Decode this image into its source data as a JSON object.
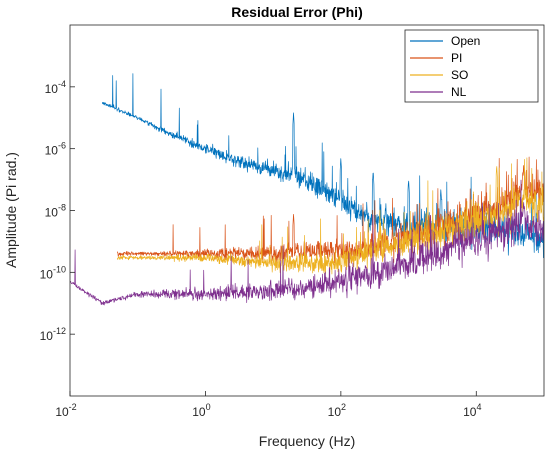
{
  "chart_data": {
    "type": "line",
    "title": "Residual Error (Phi)",
    "xlabel": "Frequency (Hz)",
    "ylabel": "Amplitude (Pi rad.)",
    "x_scale": "log",
    "y_scale": "log",
    "xlim": [
      0.01,
      100000
    ],
    "ylim": [
      1e-14,
      0.01
    ],
    "x_ticks": [
      {
        "value": 0.01,
        "base": "10",
        "exp": "-2"
      },
      {
        "value": 1,
        "base": "10",
        "exp": "0"
      },
      {
        "value": 100,
        "base": "10",
        "exp": "2"
      },
      {
        "value": 10000,
        "base": "10",
        "exp": "4"
      }
    ],
    "y_ticks": [
      {
        "value": 1e-12,
        "base": "10",
        "exp": "-12"
      },
      {
        "value": 1e-10,
        "base": "10",
        "exp": "-10"
      },
      {
        "value": 1e-08,
        "base": "10",
        "exp": "-8"
      },
      {
        "value": 1e-06,
        "base": "10",
        "exp": "-6"
      },
      {
        "value": 0.0001,
        "base": "10",
        "exp": "-4"
      }
    ],
    "grid": false,
    "legend_position": "top-right",
    "series": [
      {
        "name": "Open",
        "color": "#0072BD",
        "x_range": [
          0.03,
          100000
        ],
        "points": [
          [
            0.03,
            3e-05
          ],
          [
            0.1,
            1e-05
          ],
          [
            0.3,
            3e-06
          ],
          [
            1,
            1e-06
          ],
          [
            3,
            4e-07
          ],
          [
            10,
            2e-07
          ],
          [
            20,
            1.5e-07
          ],
          [
            30,
            1e-07
          ],
          [
            100,
            2e-08
          ],
          [
            300,
            5e-09
          ],
          [
            1000,
            3e-09
          ],
          [
            10000,
            3e-09
          ],
          [
            50000,
            2e-09
          ],
          [
            100000,
            1e-09
          ]
        ],
        "peaks": [
          [
            20,
            1.5e-05
          ],
          [
            100,
            5e-07
          ],
          [
            300,
            2e-07
          ],
          [
            1000,
            1e-07
          ],
          [
            3000,
            5e-08
          ]
        ]
      },
      {
        "name": "PI",
        "color": "#D95319",
        "x_range": [
          0.05,
          100000
        ],
        "points": [
          [
            0.05,
            4e-10
          ],
          [
            0.3,
            4e-10
          ],
          [
            1,
            4e-10
          ],
          [
            10,
            4e-10
          ],
          [
            30,
            5e-10
          ],
          [
            100,
            5e-10
          ],
          [
            300,
            6e-10
          ],
          [
            1000,
            1.5e-09
          ],
          [
            3000,
            3e-09
          ],
          [
            10000,
            7e-09
          ],
          [
            30000,
            2e-08
          ],
          [
            50000,
            5e-08
          ],
          [
            100000,
            3e-08
          ]
        ],
        "peaks": [
          [
            20,
            8e-09
          ],
          [
            50000,
            3e-07
          ]
        ]
      },
      {
        "name": "SO",
        "color": "#EDB120",
        "x_range": [
          0.05,
          100000
        ],
        "points": [
          [
            0.05,
            3e-10
          ],
          [
            0.3,
            3e-10
          ],
          [
            1,
            3e-10
          ],
          [
            10,
            2e-10
          ],
          [
            30,
            2e-10
          ],
          [
            100,
            2e-10
          ],
          [
            300,
            5e-10
          ],
          [
            1000,
            1e-09
          ],
          [
            3000,
            2e-09
          ],
          [
            10000,
            4e-09
          ],
          [
            30000,
            1e-08
          ],
          [
            50000,
            3e-08
          ],
          [
            100000,
            1e-08
          ]
        ],
        "peaks": [
          [
            300,
            1e-09
          ],
          [
            20000,
            3e-07
          ]
        ]
      },
      {
        "name": "NL",
        "color": "#7E2F8E",
        "x_range": [
          0.01,
          100000
        ],
        "points": [
          [
            0.01,
            5e-11
          ],
          [
            0.03,
            1e-11
          ],
          [
            0.1,
            2e-11
          ],
          [
            1,
            2e-11
          ],
          [
            10,
            2.5e-11
          ],
          [
            30,
            3e-11
          ],
          [
            100,
            5e-11
          ],
          [
            300,
            1e-10
          ],
          [
            1000,
            2e-10
          ],
          [
            3000,
            5e-10
          ],
          [
            10000,
            1e-09
          ],
          [
            30000,
            3e-09
          ],
          [
            50000,
            5e-09
          ],
          [
            100000,
            2e-09
          ]
        ],
        "peaks": [
          [
            50000,
            2e-08
          ]
        ]
      }
    ]
  }
}
